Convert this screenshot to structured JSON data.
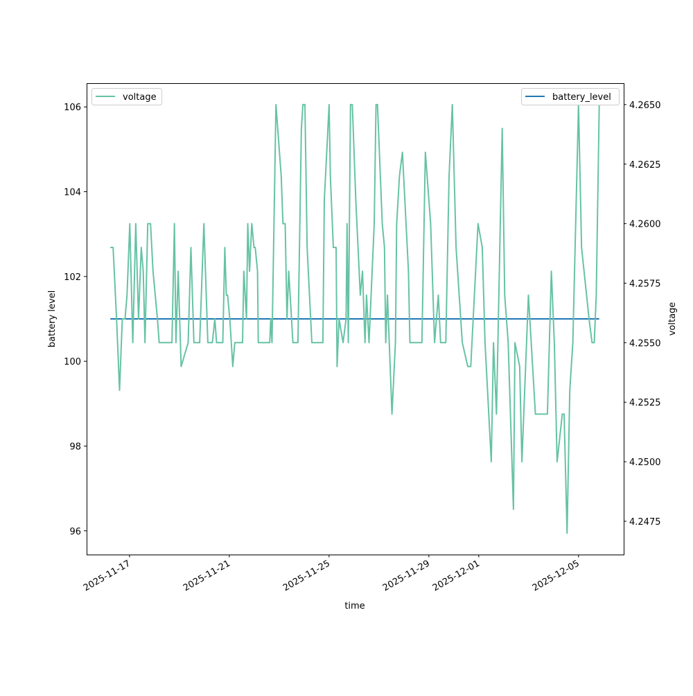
{
  "chart_data": {
    "type": "line",
    "xlabel": "time",
    "ylabel_left": "battery level",
    "ylabel_right": "voltage",
    "x_units": "days since 2025-11-17T00:00",
    "xlim": [
      -1.72,
      19.81
    ],
    "ylim_left": [
      95.44,
      106.56
    ],
    "ylim_right": [
      4.2461,
      4.2659
    ],
    "x_ticks": [
      {
        "value": 0,
        "label": "2025-11-17"
      },
      {
        "value": 4,
        "label": "2025-11-21"
      },
      {
        "value": 8,
        "label": "2025-11-25"
      },
      {
        "value": 12,
        "label": "2025-11-29"
      },
      {
        "value": 14,
        "label": "2025-12-01"
      },
      {
        "value": 18,
        "label": "2025-12-05"
      }
    ],
    "y_ticks_left": [
      "96",
      "98",
      "100",
      "102",
      "104",
      "106"
    ],
    "y_ticks_right": [
      "4.2475",
      "4.2500",
      "4.2525",
      "4.2550",
      "4.2575",
      "4.2600",
      "4.2625",
      "4.2650"
    ],
    "grid": false,
    "series": [
      {
        "name": "battery_level",
        "axis": "left",
        "color": "#1f77b4",
        "legend": "top-right",
        "points": [
          [
            -0.77,
            101
          ],
          [
            18.83,
            101
          ]
        ]
      },
      {
        "name": "voltage",
        "axis": "right",
        "color": "#66c2a5",
        "legend": "top-left",
        "points": [
          [
            -0.77,
            4.259
          ],
          [
            -0.66,
            4.259
          ],
          [
            -0.52,
            4.256
          ],
          [
            -0.4,
            4.253
          ],
          [
            -0.29,
            4.256
          ],
          [
            -0.18,
            4.256
          ],
          [
            -0.1,
            4.257
          ],
          [
            0.01,
            4.26
          ],
          [
            0.13,
            4.255
          ],
          [
            0.25,
            4.26
          ],
          [
            0.36,
            4.256
          ],
          [
            0.47,
            4.259
          ],
          [
            0.55,
            4.258
          ],
          [
            0.62,
            4.255
          ],
          [
            0.73,
            4.26
          ],
          [
            0.84,
            4.26
          ],
          [
            0.94,
            4.258
          ],
          [
            1.12,
            4.256
          ],
          [
            1.19,
            4.255
          ],
          [
            1.7,
            4.255
          ],
          [
            1.8,
            4.26
          ],
          [
            1.86,
            4.255
          ],
          [
            1.95,
            4.258
          ],
          [
            2.07,
            4.254
          ],
          [
            2.35,
            4.255
          ],
          [
            2.46,
            4.259
          ],
          [
            2.58,
            4.255
          ],
          [
            2.81,
            4.255
          ],
          [
            2.98,
            4.26
          ],
          [
            3.14,
            4.255
          ],
          [
            3.32,
            4.255
          ],
          [
            3.42,
            4.256
          ],
          [
            3.49,
            4.255
          ],
          [
            3.74,
            4.255
          ],
          [
            3.82,
            4.259
          ],
          [
            3.88,
            4.257
          ],
          [
            3.93,
            4.257
          ],
          [
            4.02,
            4.256
          ],
          [
            4.14,
            4.254
          ],
          [
            4.22,
            4.255
          ],
          [
            4.53,
            4.255
          ],
          [
            4.58,
            4.258
          ],
          [
            4.69,
            4.256
          ],
          [
            4.74,
            4.26
          ],
          [
            4.81,
            4.258
          ],
          [
            4.9,
            4.26
          ],
          [
            4.99,
            4.259
          ],
          [
            5.04,
            4.259
          ],
          [
            5.13,
            4.258
          ],
          [
            5.16,
            4.255
          ],
          [
            5.62,
            4.255
          ],
          [
            5.66,
            4.256
          ],
          [
            5.71,
            4.255
          ],
          [
            5.87,
            4.265
          ],
          [
            6.08,
            4.262
          ],
          [
            6.15,
            4.26
          ],
          [
            6.24,
            4.26
          ],
          [
            6.31,
            4.256
          ],
          [
            6.38,
            4.258
          ],
          [
            6.55,
            4.255
          ],
          [
            6.75,
            4.255
          ],
          [
            6.89,
            4.264
          ],
          [
            6.95,
            4.265
          ],
          [
            7.03,
            4.265
          ],
          [
            7.12,
            4.259
          ],
          [
            7.31,
            4.255
          ],
          [
            7.75,
            4.255
          ],
          [
            7.81,
            4.261
          ],
          [
            8.0,
            4.265
          ],
          [
            8.05,
            4.262
          ],
          [
            8.17,
            4.259
          ],
          [
            8.28,
            4.259
          ],
          [
            8.32,
            4.254
          ],
          [
            8.4,
            4.256
          ],
          [
            8.56,
            4.255
          ],
          [
            8.68,
            4.256
          ],
          [
            8.72,
            4.26
          ],
          [
            8.77,
            4.255
          ],
          [
            8.86,
            4.265
          ],
          [
            8.93,
            4.265
          ],
          [
            9.07,
            4.261
          ],
          [
            9.25,
            4.257
          ],
          [
            9.34,
            4.258
          ],
          [
            9.44,
            4.255
          ],
          [
            9.5,
            4.257
          ],
          [
            9.6,
            4.255
          ],
          [
            9.81,
            4.26
          ],
          [
            9.88,
            4.265
          ],
          [
            9.94,
            4.265
          ],
          [
            10.13,
            4.26
          ],
          [
            10.22,
            4.259
          ],
          [
            10.27,
            4.255
          ],
          [
            10.34,
            4.257
          ],
          [
            10.52,
            4.252
          ],
          [
            10.66,
            4.255
          ],
          [
            10.71,
            4.26
          ],
          [
            10.82,
            4.262
          ],
          [
            10.94,
            4.263
          ],
          [
            11.18,
            4.258
          ],
          [
            11.24,
            4.255
          ],
          [
            11.72,
            4.255
          ],
          [
            11.86,
            4.263
          ],
          [
            12.07,
            4.26
          ],
          [
            12.23,
            4.255
          ],
          [
            12.38,
            4.257
          ],
          [
            12.47,
            4.255
          ],
          [
            12.68,
            4.255
          ],
          [
            12.81,
            4.262
          ],
          [
            12.94,
            4.265
          ],
          [
            13.09,
            4.259
          ],
          [
            13.34,
            4.255
          ],
          [
            13.56,
            4.254
          ],
          [
            13.68,
            4.254
          ],
          [
            13.97,
            4.26
          ],
          [
            14.14,
            4.259
          ],
          [
            14.25,
            4.255
          ],
          [
            14.5,
            4.25
          ],
          [
            14.59,
            4.255
          ],
          [
            14.71,
            4.252
          ],
          [
            14.94,
            4.264
          ],
          [
            15.04,
            4.257
          ],
          [
            15.18,
            4.255
          ],
          [
            15.39,
            4.248
          ],
          [
            15.45,
            4.255
          ],
          [
            15.64,
            4.254
          ],
          [
            15.73,
            4.25
          ],
          [
            15.99,
            4.257
          ],
          [
            16.27,
            4.252
          ],
          [
            16.75,
            4.252
          ],
          [
            16.91,
            4.258
          ],
          [
            17.03,
            4.255
          ],
          [
            17.14,
            4.25
          ],
          [
            17.35,
            4.252
          ],
          [
            17.42,
            4.252
          ],
          [
            17.54,
            4.247
          ],
          [
            17.65,
            4.253
          ],
          [
            17.77,
            4.255
          ],
          [
            18.0,
            4.265
          ],
          [
            18.12,
            4.259
          ],
          [
            18.42,
            4.256
          ],
          [
            18.54,
            4.255
          ],
          [
            18.63,
            4.255
          ],
          [
            18.71,
            4.257
          ],
          [
            18.83,
            4.265
          ]
        ]
      }
    ]
  }
}
